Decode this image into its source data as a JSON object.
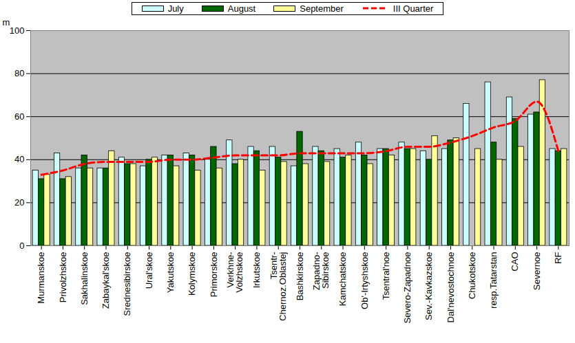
{
  "chart_data": {
    "type": "bar",
    "categories": [
      "Murmanskoe",
      "Privolzhskoe",
      "Sakhalinskoe",
      "Zabaykal'skoe",
      "Srednesibirskoe",
      "Ural'skoe",
      "Yakutskoe",
      "Kolymskoe",
      "Primorskoe",
      "Verkhne-Volzhskoe",
      "Irkutskoe",
      "Tsentr-Chernoz.Oblastej",
      "Bashkirskoe",
      "Zapadno-Sibirskoe",
      "Kamchatskoe",
      "Ob'-Irtyshskoe",
      "Tsentral'noe",
      "Severo-Zapadnoe",
      "Sev.-Kavkazskoe",
      "Dal'nevostochnoe",
      "Chukotskoe",
      "resp.Tatarstan",
      "CAO",
      "Severnoe",
      "RF"
    ],
    "series": [
      {
        "name": "July",
        "color": "#ccffff",
        "values": [
          35,
          43,
          36,
          36,
          41,
          37,
          42,
          43,
          40,
          49,
          46,
          46,
          37,
          46,
          45,
          48,
          45,
          48,
          44,
          45,
          66,
          76,
          69,
          61,
          45
        ]
      },
      {
        "name": "August",
        "color": "#006600",
        "values": [
          31,
          31,
          42,
          36,
          38,
          40,
          42,
          42,
          46,
          38,
          44,
          41,
          53,
          44,
          41,
          42,
          45,
          45,
          40,
          49,
          null,
          48,
          59,
          62,
          44
        ]
      },
      {
        "name": "September",
        "color": "#ffff99",
        "values": [
          33,
          32,
          36,
          44,
          38,
          41,
          37,
          35,
          36,
          40,
          35,
          39,
          38,
          39,
          42,
          38,
          42,
          45,
          51,
          50,
          45,
          40,
          46,
          77,
          45
        ]
      },
      {
        "name": "III Quarter",
        "type": "line",
        "line_style": "dashed",
        "color": "#ff0000",
        "values": [
          33,
          35,
          38,
          39,
          39,
          39,
          40,
          40,
          41,
          42,
          42,
          42,
          43,
          43,
          43,
          43,
          44,
          46,
          46,
          48,
          51,
          55,
          58,
          67,
          44
        ]
      }
    ],
    "ylim": [
      0,
      100
    ],
    "yticks": [
      0,
      20,
      40,
      60,
      80,
      100
    ],
    "ylabel": "m",
    "grid": true,
    "legend": "top"
  }
}
